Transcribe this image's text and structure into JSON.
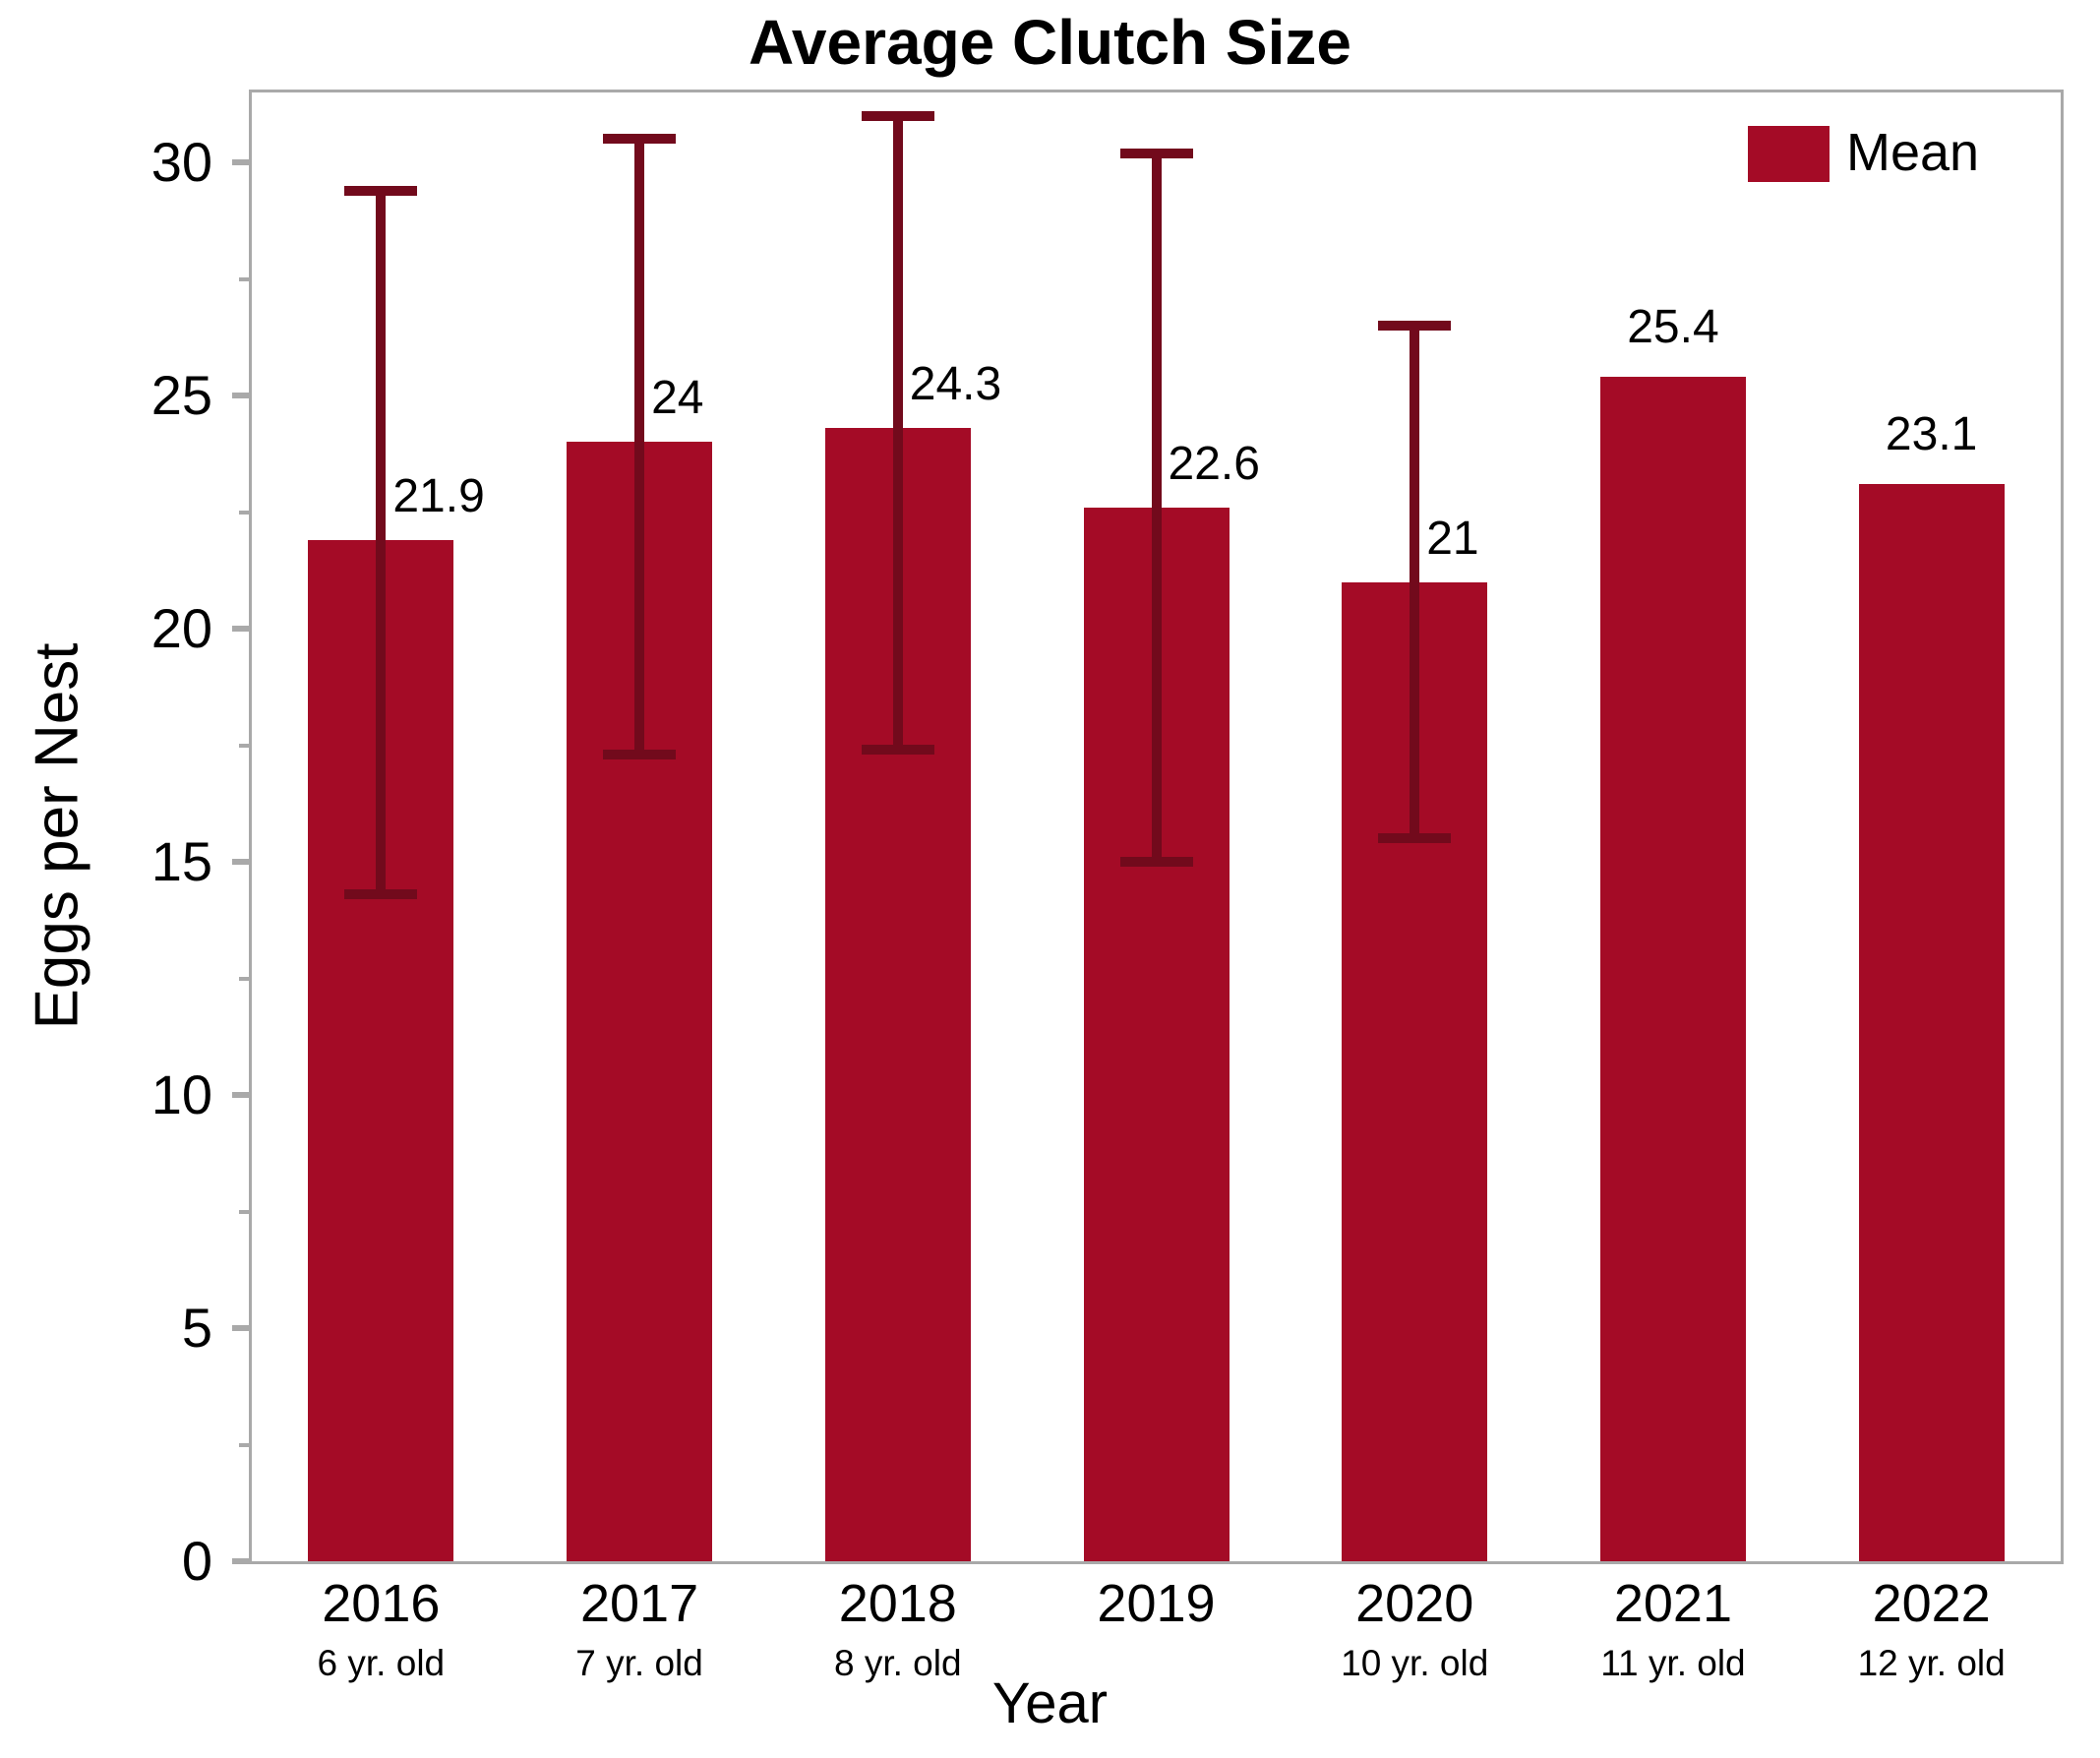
{
  "title": "Average Clutch Size",
  "legend": {
    "label": "Mean",
    "swatch_color": "#A40B26",
    "position": "upper right"
  },
  "axes": {
    "y": {
      "label": "Eggs per Nest",
      "ticks": [
        0,
        5,
        10,
        15,
        20,
        25,
        30
      ],
      "minor_step": 2.5,
      "range": [
        0,
        31.5
      ]
    },
    "x": {
      "label": "Year"
    }
  },
  "colors": {
    "bar": "#A40B26",
    "error_bar": "#720A1C",
    "axis": "#A9A9A9",
    "text": "#000000",
    "background": "#FFFFFF"
  },
  "chart_data": {
    "type": "bar",
    "title": "Average Clutch Size",
    "xlabel": "Year",
    "ylabel": "Eggs per Nest",
    "ylim": [
      0,
      31.5
    ],
    "grid": false,
    "legend": [
      "Mean"
    ],
    "legend_position": "upper right",
    "categories": [
      "2016",
      "2017",
      "2018",
      "2019",
      "2020",
      "2021",
      "2022"
    ],
    "sub_labels": [
      "6 yr. old",
      "7 yr. old",
      "8 yr. old",
      "",
      "10 yr. old",
      "11 yr. old",
      "12 yr. old"
    ],
    "values": [
      21.9,
      24,
      24.3,
      22.6,
      21,
      25.4,
      23.1
    ],
    "value_labels": [
      "21.9",
      "24",
      "24.3",
      "22.6",
      "21",
      "25.4",
      "23.1"
    ],
    "error_low": [
      14.3,
      17.3,
      17.4,
      15.0,
      15.5,
      null,
      null
    ],
    "error_high": [
      29.4,
      30.5,
      31.0,
      30.2,
      26.5,
      null,
      null
    ]
  }
}
